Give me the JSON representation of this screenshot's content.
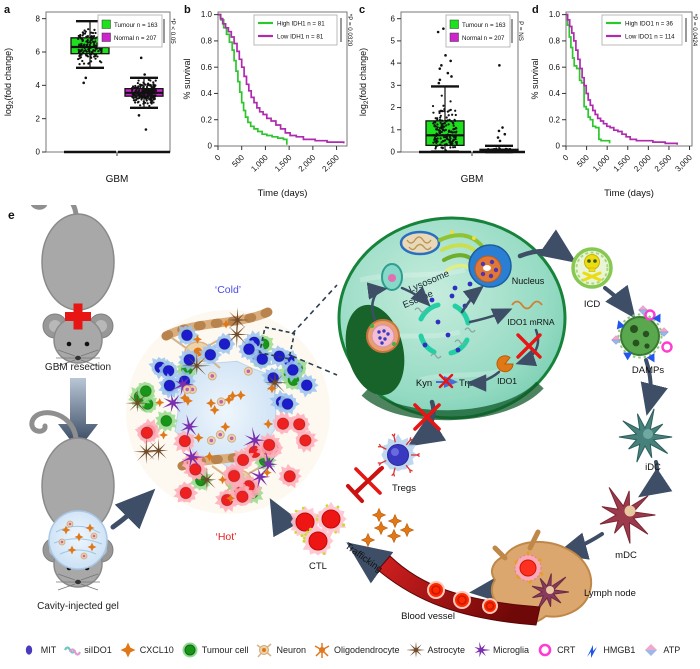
{
  "panels": {
    "a": "a",
    "b": "b",
    "c": "c",
    "d": "d",
    "e": "e"
  },
  "colors": {
    "tumour_green": "#1ee11e",
    "normal_magenta": "#ce24ce",
    "high_green": "#2dc72d",
    "low_magenta": "#b02ab0",
    "arrow_slate": "#3d4e66",
    "red_x": "#e81515",
    "cold_blue": "#4a4ae8",
    "hot_red": "#e82020"
  },
  "chart_data": [
    {
      "id": "a",
      "panel_label": "a",
      "type": "box",
      "xlabel": "GBM",
      "ylabel": "log2(fold change)",
      "ylabel_parts": {
        "pre": "log",
        "sub": "2",
        "post": "(fold change)"
      },
      "ylim": [
        0,
        8.4
      ],
      "yticks": [
        0,
        2,
        4,
        6,
        8
      ],
      "groups": [
        {
          "name": "Tumour",
          "n": 163,
          "color": "#1ee11e",
          "q1": 5.9,
          "median": 6.3,
          "q3": 6.85,
          "whisker_low": 5.05,
          "whisker_high": 7.85,
          "outliers": [
            4.15,
            4.45
          ],
          "baseline": 0
        },
        {
          "name": "Normal",
          "n": 207,
          "color": "#ce24ce",
          "q1": 3.35,
          "median": 3.55,
          "q3": 3.8,
          "whisker_low": 2.65,
          "whisker_high": 4.45,
          "outliers": [
            5.65,
            4.65,
            2.2,
            1.35
          ],
          "baseline": 0
        }
      ],
      "legend": [
        {
          "label": "Tumour n = 163",
          "color": "#1ee11e"
        },
        {
          "label": "Normal n = 207",
          "color": "#ce24ce"
        }
      ],
      "significance": "*P < 0.05"
    },
    {
      "id": "b",
      "panel_label": "b",
      "type": "line",
      "step": "after",
      "xlabel": "Time (days)",
      "ylabel": "% survival",
      "xlim": [
        0,
        2720
      ],
      "ylim": [
        0,
        1.02
      ],
      "xticks": [
        0,
        500,
        1000,
        1500,
        2000,
        2500
      ],
      "xtick_labels": [
        "0",
        "500",
        "1,000",
        "1,500",
        "2,000",
        "2,500"
      ],
      "yticks": [
        0,
        0.2,
        0.4,
        0.6,
        0.8,
        1.0
      ],
      "series": [
        {
          "name": "High IDH1 n = 81",
          "color": "#2dc72d",
          "x": [
            0,
            60,
            120,
            180,
            240,
            300,
            340,
            380,
            420,
            460,
            500,
            540,
            580,
            630,
            690,
            760,
            840,
            930,
            1030,
            1140,
            1260,
            1380,
            1450
          ],
          "y": [
            1,
            0.96,
            0.9,
            0.85,
            0.79,
            0.73,
            0.65,
            0.57,
            0.49,
            0.41,
            0.33,
            0.27,
            0.22,
            0.18,
            0.15,
            0.13,
            0.11,
            0.09,
            0.08,
            0.07,
            0.06,
            0.05,
            0.01
          ]
        },
        {
          "name": "Low IDH1 n = 81",
          "color": "#b02ab0",
          "x": [
            0,
            50,
            100,
            160,
            220,
            280,
            340,
            400,
            450,
            500,
            550,
            600,
            650,
            700,
            760,
            820,
            880,
            950,
            1030,
            1120,
            1220,
            1320,
            1420,
            1520,
            1650,
            1800,
            2050,
            2300,
            2650
          ],
          "y": [
            1,
            0.97,
            0.93,
            0.9,
            0.87,
            0.83,
            0.78,
            0.72,
            0.66,
            0.6,
            0.53,
            0.47,
            0.42,
            0.37,
            0.33,
            0.29,
            0.26,
            0.24,
            0.21,
            0.19,
            0.16,
            0.13,
            0.1,
            0.08,
            0.07,
            0.05,
            0.04,
            0.03,
            0.02
          ]
        }
      ],
      "significance": "*P = 0.0320"
    },
    {
      "id": "c",
      "panel_label": "c",
      "type": "box",
      "xlabel": "GBM",
      "ylabel": "log2(fold change)",
      "ylabel_parts": {
        "pre": "log",
        "sub": "2",
        "post": "(fold change)"
      },
      "ylim": [
        0,
        6.3
      ],
      "yticks": [
        0,
        1,
        2,
        3,
        4,
        5,
        6
      ],
      "groups": [
        {
          "name": "Tumour",
          "n": 163,
          "color": "#1ee11e",
          "q1": 0.3,
          "median": 0.75,
          "q3": 1.4,
          "whisker_low": 0.02,
          "whisker_high": 2.95,
          "outliers": [
            3.1,
            3.25,
            3.4,
            3.55,
            3.75,
            3.9,
            4.1,
            4.35,
            4.85,
            5.4,
            5.55,
            5.65
          ],
          "skew": true,
          "baseline": 0
        },
        {
          "name": "Normal",
          "n": 207,
          "color": "#ce24ce",
          "q1": 0.0,
          "median": 0.04,
          "q3": 0.12,
          "whisker_low": 0,
          "whisker_high": 0.28,
          "outliers": [
            0.5,
            0.65,
            0.8,
            0.95,
            1.1,
            3.9
          ],
          "baseline": 0
        }
      ],
      "legend": [
        {
          "label": "Tumour n = 163",
          "color": "#1ee11e"
        },
        {
          "label": "Normal n = 207",
          "color": "#ce24ce"
        }
      ],
      "significance": "P = NS"
    },
    {
      "id": "d",
      "panel_label": "d",
      "type": "line",
      "step": "after",
      "xlabel": "Time (days)",
      "ylabel": "% survival",
      "xlim": [
        0,
        3060
      ],
      "ylim": [
        0,
        1.02
      ],
      "xticks": [
        0,
        500,
        1000,
        1500,
        2000,
        2500,
        3000
      ],
      "xtick_labels": [
        "0",
        "500",
        "1,000",
        "1,500",
        "2,000",
        "2,500",
        "3,000"
      ],
      "yticks": [
        0,
        0.2,
        0.4,
        0.6,
        0.8,
        1.0
      ],
      "series": [
        {
          "name": "High IDO1 n = 36",
          "color": "#2dc72d",
          "x": [
            0,
            40,
            80,
            120,
            160,
            200,
            260,
            330,
            380,
            440,
            490,
            540,
            590,
            650,
            720,
            800,
            850,
            1060
          ],
          "y": [
            1,
            0.92,
            0.83,
            0.75,
            0.67,
            0.61,
            0.59,
            0.5,
            0.48,
            0.3,
            0.28,
            0.22,
            0.2,
            0.15,
            0.14,
            0.05,
            0.04,
            0.02
          ]
        },
        {
          "name": "Low IDO1 n = 114",
          "color": "#b02ab0",
          "x": [
            0,
            40,
            90,
            140,
            190,
            240,
            290,
            340,
            390,
            440,
            490,
            540,
            590,
            650,
            710,
            770,
            840,
            910,
            990,
            1070,
            1160,
            1260,
            1360,
            1460,
            1560,
            1710,
            1910,
            2110,
            2410,
            2700
          ],
          "y": [
            1,
            0.96,
            0.91,
            0.86,
            0.8,
            0.73,
            0.66,
            0.59,
            0.52,
            0.46,
            0.4,
            0.35,
            0.31,
            0.27,
            0.24,
            0.21,
            0.19,
            0.17,
            0.15,
            0.14,
            0.12,
            0.11,
            0.09,
            0.07,
            0.05,
            0.04,
            0.04,
            0.03,
            0.02,
            0.01
          ]
        }
      ],
      "significance": "*P = 0.0424"
    }
  ],
  "diagram": {
    "labels": {
      "gbm_resection": "GBM resection",
      "cavity_injected_gel": "Cavity-injected gel",
      "cold": "‘Cold’",
      "hot": "‘Hot’",
      "lysosome": "Lysosome",
      "escape": "Escape",
      "nucleus": "Nucleus",
      "ido1_mrna": "IDO1 mRNA",
      "ido1": "IDO1",
      "kyn": "Kyn",
      "trp": "Trp",
      "icd": "ICD",
      "damps": "DAMPs",
      "idc": "iDC",
      "mdc": "mDC",
      "lymph_node": "Lymph node",
      "blood_vessel": "Blood vessel",
      "ctl": "CTL",
      "tregs": "Tregs",
      "trafficking": "Trafficking"
    },
    "legend": [
      {
        "icon": "mit",
        "label": "MIT"
      },
      {
        "icon": "siido1",
        "label": "siIDO1"
      },
      {
        "icon": "cxcl10",
        "label": "CXCL10"
      },
      {
        "icon": "tumour",
        "label": "Tumour cell"
      },
      {
        "icon": "neuron",
        "label": "Neuron"
      },
      {
        "icon": "oligodendrocyte",
        "label": "Oligodendrocyte"
      },
      {
        "icon": "astrocyte",
        "label": "Astrocyte"
      },
      {
        "icon": "microglia",
        "label": "Microglia"
      },
      {
        "icon": "crt",
        "label": "CRT"
      },
      {
        "icon": "hmgb1",
        "label": "HMGB1"
      },
      {
        "icon": "atp",
        "label": "ATP"
      }
    ]
  }
}
